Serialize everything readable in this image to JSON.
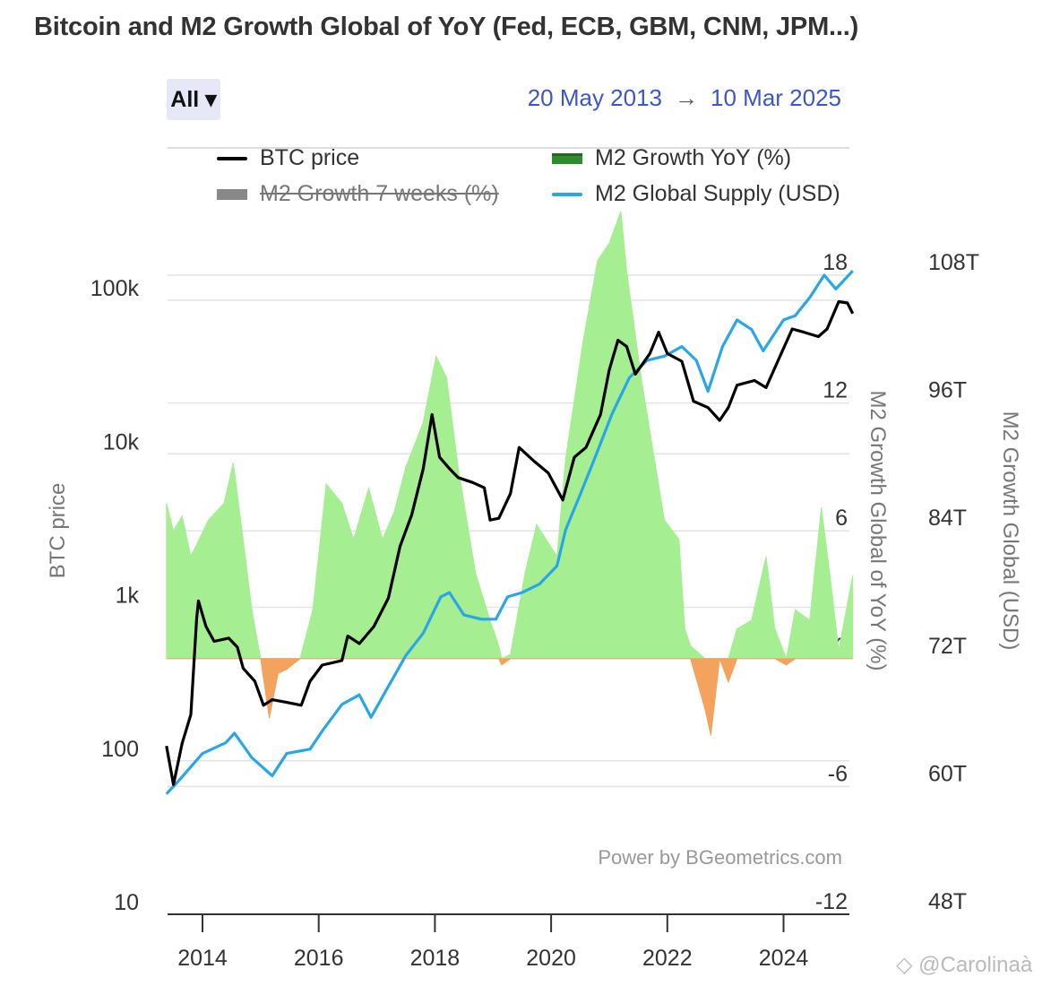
{
  "header": {
    "title": "Bitcoin and M2 Growth Global of YoY (Fed, ECB, GBM, CNM, JPM...)",
    "range_button": "All ▾",
    "date_from": "20 May 2013",
    "date_arrow": "→",
    "date_to": "10 Mar 2025"
  },
  "footer": {
    "credit": "Power by BGeometrics.com",
    "watermark": "◇ @Carolinaà"
  },
  "colors": {
    "btc": "#000000",
    "m2_yoy_positive": "#a6ee92",
    "m2_yoy_negative": "#f4a35e",
    "m2_yoy_legend": "#2e8b2e",
    "m2_7w_legend": "#888888",
    "m2_supply": "#2aa6e8"
  },
  "chart_data": {
    "type": "line",
    "title": "Bitcoin and M2 Growth Global of YoY (Fed, ECB, GBM, CNM, JPM...)",
    "x_range": [
      "2013-05-20",
      "2025-03-10"
    ],
    "x_ticks": [
      "2014",
      "2016",
      "2018",
      "2020",
      "2022",
      "2024"
    ],
    "legend": [
      {
        "name": "BTC price",
        "visible": true
      },
      {
        "name": "M2 Growth YoY (%)",
        "visible": true
      },
      {
        "name": "M2 Growth 7 weeks (%)",
        "visible": false
      },
      {
        "name": "M2 Global Supply (USD)",
        "visible": true
      }
    ],
    "legend_placement": "top",
    "grid": true,
    "axes": {
      "left": {
        "label": "BTC price",
        "scale": "log",
        "range": [
          10,
          100000
        ],
        "ticks": [
          "10",
          "100",
          "1k",
          "10k",
          "100k"
        ]
      },
      "right1": {
        "label": "M2 Growth Global of YoY (%)",
        "range": [
          -12,
          18
        ],
        "ticks": [
          "-12",
          "-6",
          "0",
          "6",
          "12",
          "18"
        ]
      },
      "right2": {
        "label": "M2 Growth Global (USD)",
        "range": [
          48,
          108
        ],
        "unit": "T",
        "ticks": [
          "48T",
          "60T",
          "72T",
          "84T",
          "96T",
          "108T"
        ]
      }
    },
    "series": [
      {
        "name": "BTC price",
        "axis": "left",
        "type": "line",
        "x": [
          2013.38,
          2013.5,
          2013.65,
          2013.8,
          2013.9,
          2013.93,
          2014.06,
          2014.2,
          2014.45,
          2014.6,
          2014.7,
          2014.9,
          2015.05,
          2015.2,
          2015.45,
          2015.7,
          2015.85,
          2016.06,
          2016.4,
          2016.5,
          2016.7,
          2016.95,
          2017.2,
          2017.4,
          2017.6,
          2017.8,
          2017.95,
          2018.08,
          2018.25,
          2018.4,
          2018.65,
          2018.85,
          2018.95,
          2019.1,
          2019.3,
          2019.45,
          2019.7,
          2019.95,
          2020.2,
          2020.4,
          2020.6,
          2020.85,
          2021.0,
          2021.15,
          2021.3,
          2021.45,
          2021.7,
          2021.85,
          2022.0,
          2022.25,
          2022.45,
          2022.7,
          2022.9,
          2023.05,
          2023.2,
          2023.5,
          2023.7,
          2023.9,
          2024.15,
          2024.35,
          2024.6,
          2024.75,
          2024.95,
          2025.1,
          2025.19
        ],
        "y": [
          125,
          70,
          130,
          200,
          850,
          1100,
          750,
          600,
          630,
          550,
          400,
          330,
          230,
          250,
          240,
          230,
          330,
          420,
          450,
          650,
          580,
          750,
          1150,
          2500,
          4000,
          8000,
          18000,
          9500,
          8000,
          7000,
          6500,
          6000,
          3700,
          3800,
          5500,
          11000,
          9000,
          7500,
          5000,
          9500,
          11000,
          18000,
          35000,
          55000,
          50000,
          33000,
          45000,
          62000,
          45000,
          40000,
          22000,
          20000,
          16500,
          20000,
          28000,
          30000,
          27000,
          40000,
          65000,
          62000,
          58000,
          65000,
          98000,
          96000,
          82000
        ]
      },
      {
        "name": "M2 Growth YoY (%)",
        "axis": "right1",
        "type": "area",
        "x": [
          2013.38,
          2013.5,
          2013.65,
          2013.8,
          2014.1,
          2014.37,
          2014.53,
          2014.7,
          2014.85,
          2015.0,
          2015.15,
          2015.3,
          2015.45,
          2015.68,
          2015.9,
          2016.13,
          2016.4,
          2016.6,
          2016.86,
          2017.1,
          2017.3,
          2017.5,
          2017.8,
          2018.02,
          2018.2,
          2018.4,
          2018.7,
          2018.95,
          2019.1,
          2019.15,
          2019.3,
          2019.55,
          2019.75,
          2020.1,
          2020.25,
          2020.55,
          2020.8,
          2021.0,
          2021.2,
          2021.3,
          2021.55,
          2021.8,
          2021.95,
          2022.2,
          2022.3,
          2022.4,
          2022.65,
          2022.75,
          2022.9,
          2023.05,
          2023.2,
          2023.45,
          2023.7,
          2023.85,
          2024.05,
          2024.2,
          2024.45,
          2024.65,
          2024.8,
          2024.95,
          2025.19
        ],
        "y": [
          7.3,
          6.0,
          6.7,
          4.8,
          6.5,
          7.3,
          9.2,
          5.6,
          2.3,
          0,
          -2.8,
          -0.7,
          -0.5,
          0,
          2.3,
          8.2,
          7.3,
          5.6,
          8.0,
          5.6,
          6.9,
          9.0,
          11.1,
          14.2,
          13.2,
          9.0,
          4.0,
          1.8,
          0.6,
          -0.3,
          0.2,
          4.0,
          6.3,
          4.8,
          9.4,
          14.9,
          18.7,
          19.5,
          21.0,
          18.2,
          13.2,
          9.0,
          6.5,
          5.6,
          1.4,
          0.6,
          -2.4,
          -3.6,
          0,
          -1.1,
          1.4,
          1.8,
          4.8,
          1.4,
          -0.3,
          2.3,
          1.8,
          7.1,
          3.9,
          0.4,
          3.9
        ]
      },
      {
        "name": "M2 Global Supply (USD)",
        "axis": "right2",
        "type": "line",
        "unit": "T",
        "x": [
          2013.38,
          2013.6,
          2014.0,
          2014.4,
          2014.55,
          2014.85,
          2015.2,
          2015.45,
          2015.85,
          2016.06,
          2016.4,
          2016.7,
          2016.9,
          2017.2,
          2017.5,
          2017.8,
          2018.1,
          2018.25,
          2018.5,
          2018.8,
          2019.05,
          2019.25,
          2019.5,
          2019.8,
          2020.1,
          2020.25,
          2020.5,
          2020.75,
          2021.05,
          2021.35,
          2021.65,
          2021.95,
          2022.25,
          2022.5,
          2022.7,
          2022.95,
          2023.2,
          2023.45,
          2023.65,
          2024.0,
          2024.2,
          2024.45,
          2024.7,
          2024.9,
          2025.19
        ],
        "y": [
          59.3,
          60.6,
          63.1,
          64.1,
          65.0,
          62.7,
          61.0,
          63.1,
          63.5,
          65.2,
          67.7,
          68.6,
          66.5,
          69.4,
          72.3,
          74.4,
          77.8,
          78.2,
          76.1,
          75.7,
          75.7,
          77.8,
          78.2,
          79.0,
          80.7,
          84.1,
          87.4,
          90.8,
          95.0,
          98.4,
          100.0,
          100.4,
          101.3,
          100.0,
          97.1,
          101.3,
          103.8,
          102.9,
          100.9,
          103.8,
          104.2,
          105.9,
          108.0,
          106.7,
          108.4
        ]
      }
    ]
  }
}
